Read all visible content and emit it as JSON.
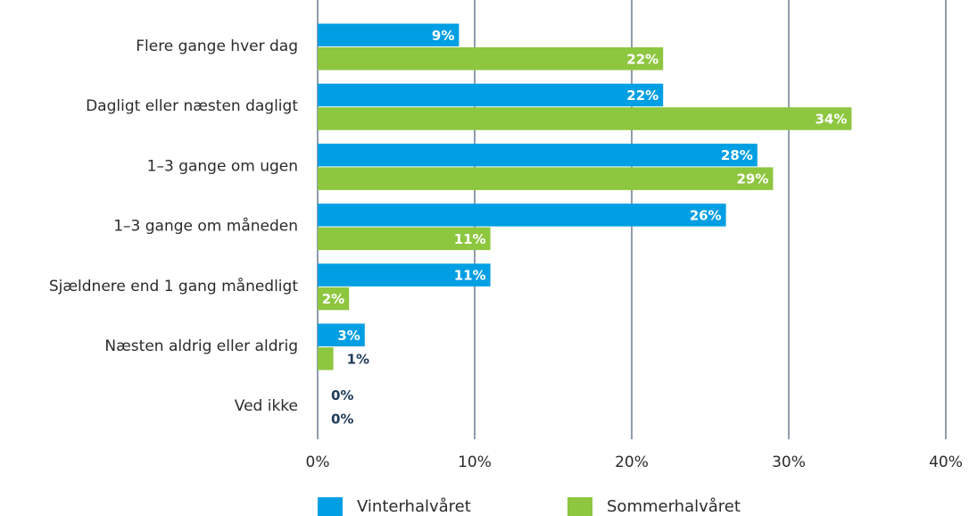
{
  "chart_data": {
    "type": "bar",
    "orientation": "horizontal",
    "categories": [
      "Flere gange hver dag",
      "Dagligt eller næsten dagligt",
      "1–3 gange om ugen",
      "1–3 gange om måneden",
      "Sjældnere end 1 gang månedligt",
      "Næsten aldrig eller aldrig",
      "Ved ikke"
    ],
    "series": [
      {
        "name": "Vinterhalvåret",
        "color": "#009fe3",
        "values": [
          9,
          22,
          28,
          26,
          11,
          3,
          0
        ],
        "value_labels": [
          "9%",
          "22%",
          "28%",
          "26%",
          "11%",
          "3%",
          "0%"
        ]
      },
      {
        "name": "Sommerhalvåret",
        "color": "#8dc63f",
        "values": [
          22,
          34,
          29,
          11,
          2,
          1,
          0
        ],
        "value_labels": [
          "22%",
          "34%",
          "29%",
          "11%",
          "2%",
          "1%",
          "0%"
        ]
      }
    ],
    "xlim": [
      0,
      40
    ],
    "xticks": [
      {
        "value": 0,
        "label": "0%"
      },
      {
        "value": 10,
        "label": "10%"
      },
      {
        "value": 20,
        "label": "20%"
      },
      {
        "value": 30,
        "label": "30%"
      },
      {
        "value": 40,
        "label": "40%"
      }
    ],
    "grid": true,
    "legend": "bottom"
  }
}
